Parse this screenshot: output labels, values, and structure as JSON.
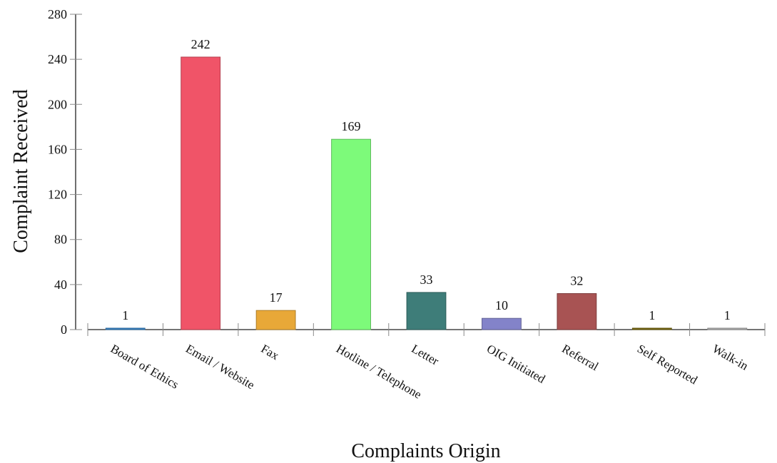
{
  "chart_data": {
    "type": "bar",
    "title": "",
    "xlabel": "Complaints Origin",
    "ylabel": "Complaint Received",
    "categories": [
      "Board of Ethics",
      "Email / Website",
      "Fax",
      "Hotline / Telephone",
      "Letter",
      "OIG Initiated",
      "Referral",
      "Self Reported",
      "Walk-in"
    ],
    "values": [
      1,
      242,
      17,
      169,
      33,
      10,
      32,
      1,
      1
    ],
    "data_labels": [
      "1",
      "242",
      "17",
      "169",
      "33",
      "10",
      "32",
      "1",
      "1"
    ],
    "colors": [
      "#3a86c8",
      "#f05468",
      "#e8a838",
      "#7dfa7a",
      "#3e7d79",
      "#8383c9",
      "#a85353",
      "#7a6a10",
      "#b0b0b0"
    ],
    "ylim": [
      0,
      280
    ],
    "yticks": [
      "0",
      "40",
      "80",
      "120",
      "160",
      "200",
      "240",
      "280"
    ],
    "grid": false,
    "legend": "none"
  }
}
